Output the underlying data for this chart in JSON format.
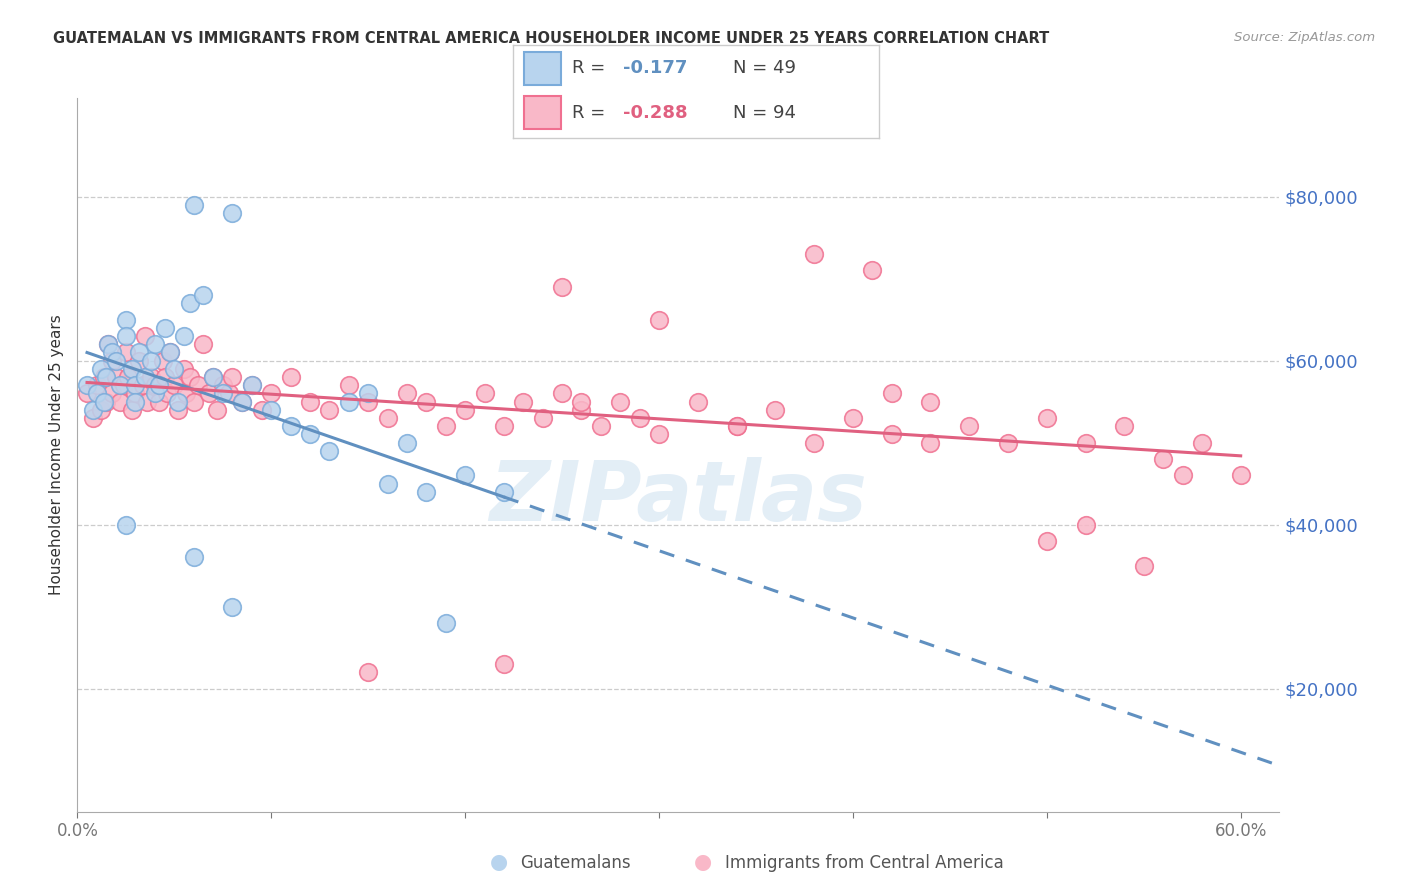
{
  "title": "GUATEMALAN VS IMMIGRANTS FROM CENTRAL AMERICA HOUSEHOLDER INCOME UNDER 25 YEARS CORRELATION CHART",
  "source": "Source: ZipAtlas.com",
  "ylabel": "Householder Income Under 25 years",
  "xlim": [
    0.0,
    0.62
  ],
  "ylim": [
    5000,
    92000
  ],
  "yticks": [
    20000,
    40000,
    60000,
    80000
  ],
  "ytick_labels": [
    "$20,000",
    "$40,000",
    "$60,000",
    "$80,000"
  ],
  "xticks": [
    0.0,
    0.1,
    0.2,
    0.3,
    0.4,
    0.5,
    0.6
  ],
  "xtick_labels": [
    "0.0%",
    "",
    "",
    "",
    "",
    "",
    "60.0%"
  ],
  "label1": "Guatemalans",
  "label2": "Immigrants from Central America",
  "color1_fill": "#b8d4ee",
  "color1_edge": "#7aabda",
  "color2_fill": "#f9b8c8",
  "color2_edge": "#f07090",
  "color1_line": "#6090c0",
  "color2_line": "#e06080",
  "color_axis_labels": "#4472c4",
  "background_color": "#ffffff",
  "grid_color": "#cccccc",
  "watermark": "ZIPatlas",
  "legend_r1_val": "-0.177",
  "legend_n1": "49",
  "legend_r2_val": "-0.288",
  "legend_n2": "94",
  "guatemalan_x": [
    0.005,
    0.008,
    0.01,
    0.012,
    0.014,
    0.015,
    0.016,
    0.018,
    0.02,
    0.022,
    0.025,
    0.025,
    0.028,
    0.03,
    0.03,
    0.032,
    0.035,
    0.038,
    0.04,
    0.04,
    0.042,
    0.045,
    0.048,
    0.05,
    0.052,
    0.055,
    0.058,
    0.06,
    0.065,
    0.07,
    0.075,
    0.08,
    0.085,
    0.09,
    0.1,
    0.11,
    0.12,
    0.13,
    0.14,
    0.15,
    0.16,
    0.17,
    0.18,
    0.2,
    0.22,
    0.025,
    0.06,
    0.08,
    0.19
  ],
  "guatemalan_y": [
    57000,
    54000,
    56000,
    59000,
    55000,
    58000,
    62000,
    61000,
    60000,
    57000,
    65000,
    63000,
    59000,
    57000,
    55000,
    61000,
    58000,
    60000,
    56000,
    62000,
    57000,
    64000,
    61000,
    59000,
    55000,
    63000,
    67000,
    79000,
    68000,
    58000,
    56000,
    78000,
    55000,
    57000,
    54000,
    52000,
    51000,
    49000,
    55000,
    56000,
    45000,
    50000,
    44000,
    46000,
    44000,
    40000,
    36000,
    30000,
    28000
  ],
  "central_x": [
    0.005,
    0.008,
    0.01,
    0.012,
    0.014,
    0.015,
    0.016,
    0.018,
    0.018,
    0.02,
    0.022,
    0.024,
    0.025,
    0.026,
    0.028,
    0.03,
    0.032,
    0.034,
    0.035,
    0.036,
    0.038,
    0.04,
    0.042,
    0.044,
    0.045,
    0.046,
    0.048,
    0.05,
    0.052,
    0.055,
    0.056,
    0.058,
    0.06,
    0.062,
    0.065,
    0.068,
    0.07,
    0.072,
    0.075,
    0.078,
    0.08,
    0.085,
    0.09,
    0.095,
    0.1,
    0.11,
    0.12,
    0.13,
    0.14,
    0.15,
    0.16,
    0.17,
    0.18,
    0.19,
    0.2,
    0.21,
    0.22,
    0.23,
    0.24,
    0.25,
    0.26,
    0.27,
    0.28,
    0.29,
    0.3,
    0.32,
    0.34,
    0.36,
    0.38,
    0.4,
    0.42,
    0.44,
    0.46,
    0.48,
    0.5,
    0.52,
    0.54,
    0.56,
    0.58,
    0.6,
    0.41,
    0.25,
    0.52,
    0.57,
    0.5,
    0.55,
    0.38,
    0.3,
    0.42,
    0.44,
    0.26,
    0.34,
    0.22,
    0.15
  ],
  "central_y": [
    56000,
    53000,
    57000,
    54000,
    58000,
    55000,
    62000,
    60000,
    56000,
    58000,
    55000,
    57000,
    61000,
    58000,
    54000,
    56000,
    60000,
    57000,
    63000,
    55000,
    58000,
    57000,
    55000,
    60000,
    58000,
    56000,
    61000,
    57000,
    54000,
    59000,
    56000,
    58000,
    55000,
    57000,
    62000,
    56000,
    58000,
    54000,
    57000,
    56000,
    58000,
    55000,
    57000,
    54000,
    56000,
    58000,
    55000,
    54000,
    57000,
    55000,
    53000,
    56000,
    55000,
    52000,
    54000,
    56000,
    52000,
    55000,
    53000,
    56000,
    54000,
    52000,
    55000,
    53000,
    51000,
    55000,
    52000,
    54000,
    50000,
    53000,
    51000,
    55000,
    52000,
    50000,
    53000,
    50000,
    52000,
    48000,
    50000,
    46000,
    71000,
    69000,
    40000,
    46000,
    38000,
    35000,
    73000,
    65000,
    56000,
    50000,
    55000,
    52000,
    23000,
    22000
  ]
}
